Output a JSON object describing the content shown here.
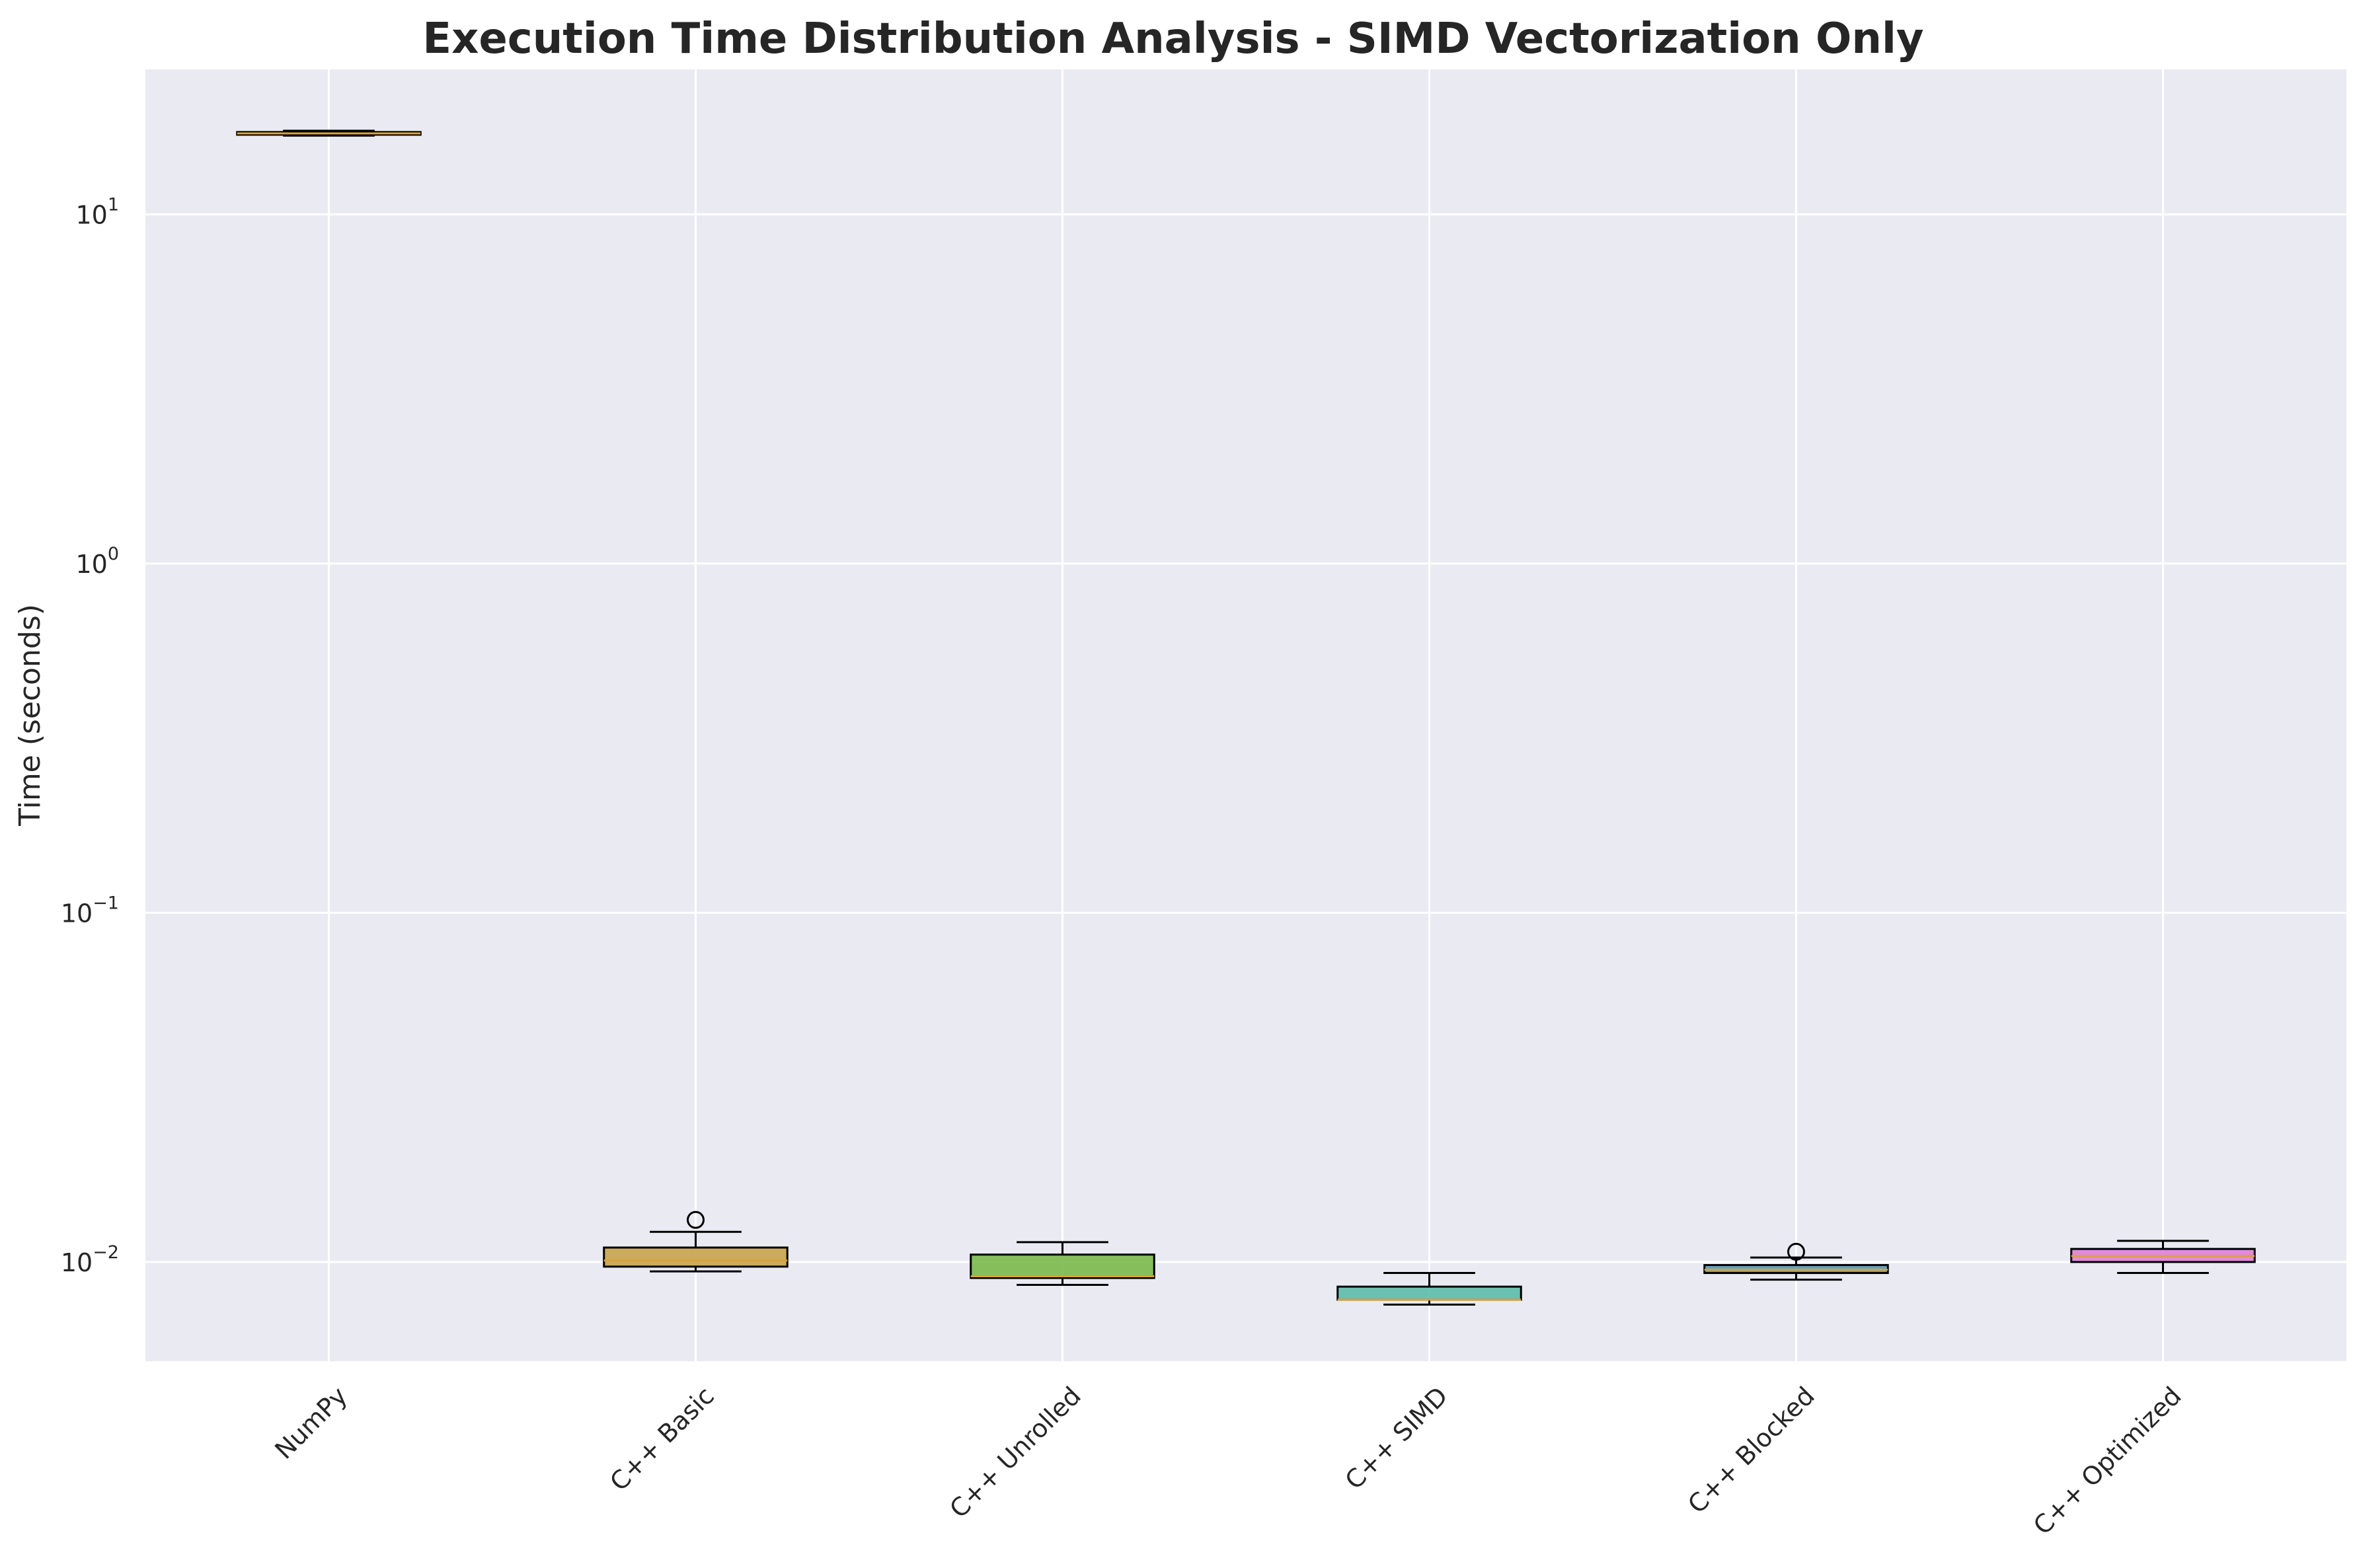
{
  "chart_data": {
    "type": "box",
    "title": "Execution Time Distribution Analysis - SIMD Vectorization Only",
    "ylabel": "Time (seconds)",
    "xlabel": "",
    "yscale": "log",
    "ylim": [
      0.0052,
      26
    ],
    "yticks": [
      {
        "value": 0.01,
        "base": "10",
        "exp": "−2"
      },
      {
        "value": 0.1,
        "base": "10",
        "exp": "−1"
      },
      {
        "value": 1,
        "base": "10",
        "exp": "0"
      },
      {
        "value": 10,
        "base": "10",
        "exp": "1"
      }
    ],
    "grid": true,
    "legend": "none",
    "categories": [
      "NumPy",
      "C++ Basic",
      "C++ Unrolled",
      "C++ SIMD",
      "C++ Blocked",
      "C++ Optimized"
    ],
    "boxes": [
      {
        "name": "NumPy",
        "whisker_low": 16.8,
        "q1": 16.9,
        "median": 17.05,
        "q3": 17.2,
        "whisker_high": 17.35,
        "outliers": [],
        "color": "#c9a94b"
      },
      {
        "name": "C++ Basic",
        "whisker_low": 0.0094,
        "q1": 0.0097,
        "median": 0.0101,
        "q3": 0.011,
        "whisker_high": 0.0122,
        "outliers": [
          0.0132
        ],
        "color": "#c8a44b"
      },
      {
        "name": "C++ Unrolled",
        "whisker_low": 0.0086,
        "q1": 0.009,
        "median": 0.0091,
        "q3": 0.0105,
        "whisker_high": 0.0114,
        "outliers": [],
        "color": "#7ab94a"
      },
      {
        "name": "C++ SIMD",
        "whisker_low": 0.00755,
        "q1": 0.0078,
        "median": 0.0078,
        "q3": 0.0085,
        "whisker_high": 0.0093,
        "outliers": [],
        "color": "#5cbcab"
      },
      {
        "name": "C++ Blocked",
        "whisker_low": 0.0089,
        "q1": 0.0093,
        "median": 0.0095,
        "q3": 0.0098,
        "whisker_high": 0.0103,
        "outliers": [
          0.0107
        ],
        "color": "#5e97b2"
      },
      {
        "name": "C++ Optimized",
        "whisker_low": 0.0093,
        "q1": 0.01,
        "median": 0.0104,
        "q3": 0.0109,
        "whisker_high": 0.0115,
        "outliers": [],
        "color": "#e27ed6"
      }
    ],
    "median_color": "#d8a33a"
  }
}
